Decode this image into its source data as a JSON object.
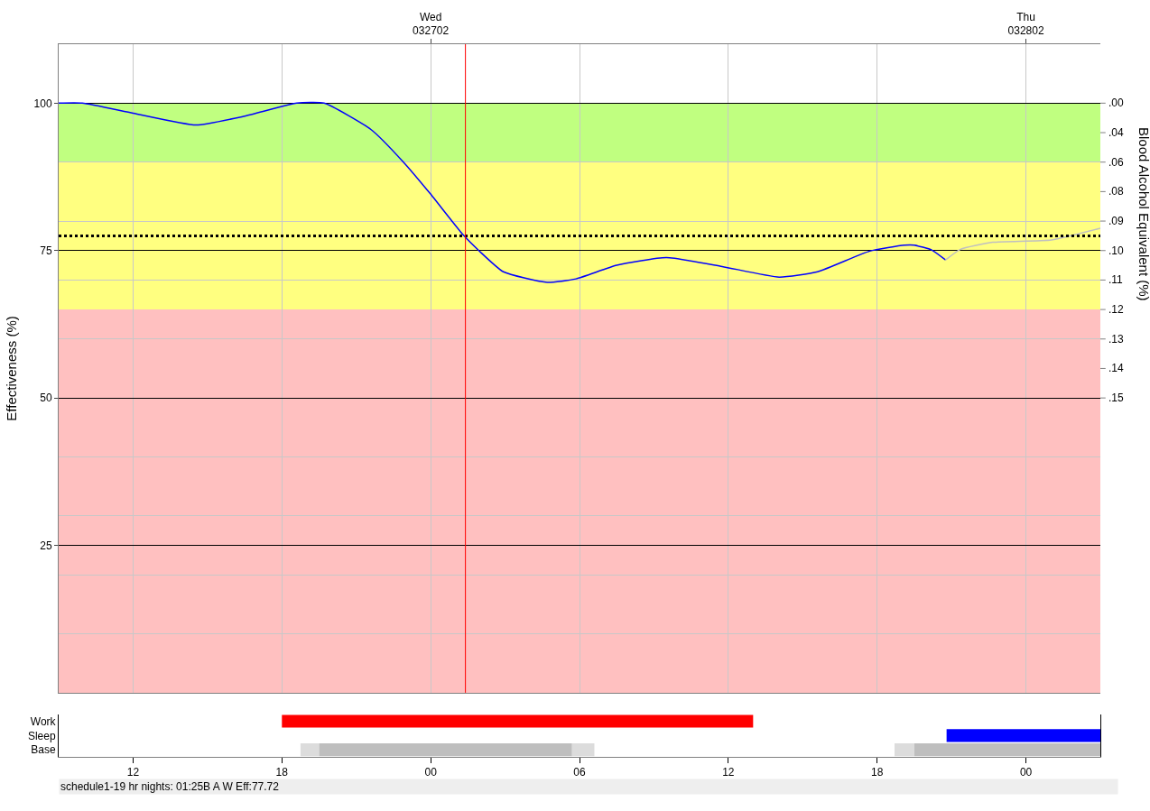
{
  "chart_data": [
    {
      "type": "line",
      "ylabel": "Effectiveness (%)",
      "y2label": "Blood Alcohol Equivalent (%)",
      "xlim": [
        9,
        51
      ],
      "xticks": [
        12,
        18,
        {
          "value": 24,
          "label": "00"
        },
        {
          "value": 30,
          "label": "06"
        },
        {
          "value": 36,
          "label": "12"
        },
        {
          "value": 42,
          "label": "18"
        },
        {
          "value": 48,
          "label": "00"
        }
      ],
      "tick_labels": "y",
      "x2lim": [
        "--03-26T09:00",
        "--03-28T03:00"
      ],
      "x2ticks": [
        {
          "value": "--03-27",
          "label": "Wed\n032702"
        },
        {
          "value": "--03-28",
          "label": "Thu\n032802"
        }
      ],
      "annotations": [
        ".00",
        ".04",
        ".06",
        ".08",
        ".09",
        ".10",
        ".11",
        ".12",
        ".13",
        ".14",
        ".15"
      ],
      "ylim": [
        0,
        110
      ],
      "yticks": [
        {
          "value": 10,
          "label": null
        },
        {
          "value": 20,
          "label": null
        },
        25,
        {
          "value": 30,
          "label": null
        },
        {
          "value": 40,
          "label": null
        },
        50,
        {
          "value": 60,
          "label": null
        },
        {
          "value": 70,
          "label": null
        },
        75,
        {
          "value": 80,
          "label": null
        },
        {
          "value": 90,
          "label": null
        },
        100
      ],
      "grid": true,
      "bands": [
        {
          "axis": "y",
          "from": 90,
          "to": 100,
          "color": "#c0ff80"
        },
        {
          "axis": "y",
          "from": 65,
          "to": 90,
          "color": "#ffff80"
        },
        {
          "axis": "y",
          "from": 0,
          "to": 65,
          "color": "#ffc0c0"
        }
      ],
      "ref_lines": [
        {
          "axis": "y",
          "value": 77.5,
          "color": "#000000",
          "line_style": "dotted"
        },
        {
          "axis": "x",
          "value": 25.4,
          "color": "#ff0000",
          "line_style": "solid"
        }
      ],
      "series": [
        {
          "color": "#0000ff",
          "x": [
            9,
            9.95,
            12,
            14.54,
            16.5,
            18.6,
            19.7,
            21.6,
            22.9,
            23.97,
            25.3,
            25.94,
            26.93,
            28.7,
            29.86,
            31.5,
            33.5,
            35.75,
            38.05,
            39.6,
            41.7,
            43.1,
            43.5,
            44.2,
            44.76
          ],
          "values": [
            100,
            100,
            98.3,
            96.3,
            97.8,
            100,
            100,
            95.5,
            90,
            84.7,
            77.7,
            75,
            71.4,
            69.6,
            70.2,
            72.5,
            73.8,
            72.3,
            70.5,
            71.4,
            74.9,
            75.9,
            75.9,
            75.1,
            73.4
          ]
        },
        {
          "color": "#c0c0c0",
          "x": [
            44.76,
            45.36,
            46.66,
            49.03,
            51
          ],
          "values": [
            73.4,
            75.2,
            76.4,
            76.8,
            78.8
          ]
        }
      ]
    },
    {
      "type": "bar",
      "orientation": "horizontal",
      "categories": [
        "Work",
        "Sleep",
        "Base"
      ],
      "xlim": [
        9,
        51
      ],
      "xticks": [
        12,
        18,
        {
          "value": 24,
          "label": "00"
        },
        {
          "value": 30,
          "label": "06"
        },
        {
          "value": 36,
          "label": "12"
        },
        {
          "value": 42,
          "label": "18"
        },
        {
          "value": 48,
          "label": "00"
        }
      ],
      "annotations": [
        "schedule1-19 hr nights: 01:25B A W Eff:77.72"
      ],
      "series": [
        {
          "color": "#ff0000",
          "values": [
            19,
            null,
            null
          ],
          "base": [
            18,
            null,
            null
          ]
        },
        {
          "color": "#0000ff",
          "values": [
            null,
            6.2,
            null
          ],
          "base": [
            null,
            44.8,
            null
          ]
        },
        {
          "color": "#dcdcdc",
          "values": [
            null,
            null,
            0.75
          ],
          "base": [
            null,
            null,
            18.75
          ]
        },
        {
          "color": "#bebebe",
          "values": [
            null,
            null,
            10.2
          ],
          "base": [
            null,
            null,
            19.5
          ]
        },
        {
          "color": "#dcdcdc",
          "values": [
            null,
            null,
            0.9
          ],
          "base": [
            null,
            null,
            29.7
          ]
        },
        {
          "color": "#dcdcdc",
          "values": [
            null,
            null,
            0.8
          ],
          "base": [
            null,
            null,
            42.7
          ]
        },
        {
          "color": "#bebebe",
          "values": [
            null,
            null,
            7.5
          ],
          "base": [
            null,
            null,
            43.5
          ]
        }
      ]
    }
  ]
}
